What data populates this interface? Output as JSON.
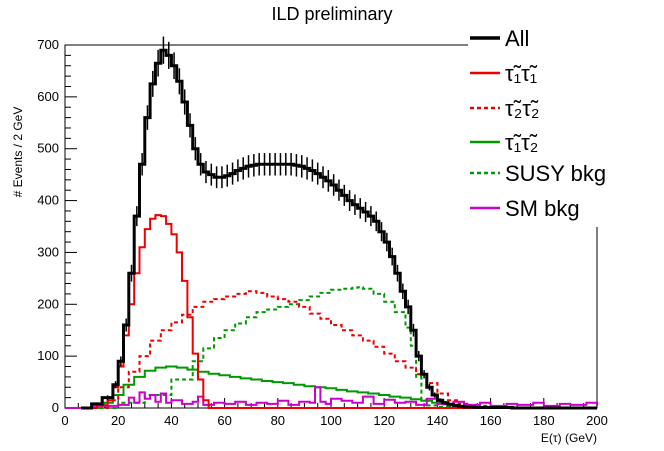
{
  "chart_data": {
    "type": "line",
    "title": "ILD preliminary",
    "xlabel": "E(τ) (GeV)",
    "ylabel": "# Events / 2 GeV",
    "xlim": [
      0,
      200
    ],
    "ylim": [
      0,
      700
    ],
    "xticks": [
      0,
      20,
      40,
      60,
      80,
      100,
      120,
      140,
      160,
      180,
      200
    ],
    "yticks": [
      0,
      100,
      200,
      300,
      400,
      500,
      600,
      700
    ],
    "legend_position": "top-right",
    "series": [
      {
        "name": "All",
        "label": "All",
        "color": "#000000",
        "dash": "solid",
        "width": 3,
        "errorbars": true,
        "x": [
          6,
          10,
          14,
          18,
          20,
          22,
          24,
          26,
          28,
          30,
          32,
          34,
          36,
          38,
          40,
          42,
          44,
          46,
          48,
          50,
          52,
          54,
          56,
          58,
          60,
          62,
          64,
          66,
          68,
          70,
          72,
          74,
          76,
          78,
          80,
          82,
          84,
          86,
          88,
          90,
          92,
          94,
          96,
          98,
          100,
          102,
          104,
          106,
          108,
          110,
          112,
          114,
          116,
          118,
          120,
          122,
          124,
          126,
          128,
          130,
          132,
          134,
          136,
          138,
          140,
          142,
          144,
          146,
          148,
          150,
          152,
          154,
          156,
          158,
          160,
          164,
          168,
          172,
          176,
          180,
          184,
          188,
          192,
          196,
          200
        ],
        "values": [
          0,
          8,
          20,
          45,
          90,
          160,
          260,
          370,
          470,
          560,
          625,
          665,
          690,
          680,
          660,
          630,
          590,
          545,
          500,
          470,
          455,
          450,
          445,
          445,
          448,
          452,
          458,
          462,
          466,
          468,
          470,
          470,
          470,
          470,
          470,
          470,
          470,
          468,
          466,
          462,
          458,
          452,
          445,
          438,
          430,
          420,
          410,
          400,
          392,
          385,
          378,
          370,
          360,
          340,
          320,
          292,
          260,
          225,
          195,
          150,
          100,
          65,
          40,
          25,
          15,
          10,
          7,
          5,
          3,
          2,
          2,
          1,
          1,
          1,
          1,
          1,
          0,
          0,
          0,
          0,
          0,
          0,
          0,
          0,
          0
        ]
      },
      {
        "name": "stau1-stau1",
        "label": "τ̃₁τ̃₁",
        "color": "#ee0000",
        "dash": "solid",
        "width": 2,
        "x": [
          8,
          12,
          16,
          18,
          20,
          22,
          24,
          26,
          28,
          30,
          32,
          34,
          36,
          38,
          40,
          42,
          44,
          46,
          48,
          50,
          52,
          54,
          60,
          100,
          140,
          200
        ],
        "values": [
          0,
          5,
          15,
          40,
          80,
          140,
          200,
          260,
          310,
          345,
          365,
          372,
          370,
          355,
          335,
          300,
          245,
          175,
          105,
          55,
          15,
          0,
          0,
          0,
          0,
          0
        ]
      },
      {
        "name": "stau2-stau2",
        "label": "τ̃₂τ̃₂",
        "color": "#ee0000",
        "dash": "dashed",
        "width": 2,
        "x": [
          10,
          16,
          20,
          24,
          28,
          32,
          36,
          40,
          44,
          48,
          52,
          56,
          60,
          64,
          68,
          72,
          76,
          80,
          84,
          88,
          92,
          96,
          100,
          104,
          108,
          112,
          116,
          120,
          124,
          128,
          132,
          136,
          140,
          144,
          148,
          152,
          160,
          170,
          180,
          200
        ],
        "values": [
          0,
          15,
          40,
          70,
          100,
          130,
          150,
          165,
          180,
          195,
          205,
          210,
          215,
          220,
          225,
          222,
          215,
          210,
          205,
          195,
          182,
          172,
          160,
          150,
          140,
          130,
          118,
          105,
          90,
          78,
          65,
          48,
          28,
          15,
          8,
          4,
          2,
          1,
          0,
          0
        ]
      },
      {
        "name": "stau1-stau2",
        "label": "τ̃₁τ̃₂",
        "color": "#009900",
        "dash": "solid",
        "width": 2,
        "x": [
          10,
          14,
          18,
          22,
          26,
          30,
          34,
          38,
          42,
          46,
          50,
          54,
          58,
          62,
          66,
          70,
          74,
          78,
          82,
          86,
          90,
          94,
          98,
          102,
          106,
          110,
          114,
          118,
          122,
          126,
          130,
          134,
          138,
          142,
          146,
          150,
          160,
          170,
          180,
          200
        ],
        "values": [
          0,
          10,
          25,
          45,
          60,
          72,
          78,
          80,
          78,
          74,
          70,
          66,
          63,
          60,
          57,
          55,
          52,
          50,
          48,
          45,
          42,
          40,
          38,
          35,
          32,
          30,
          28,
          25,
          22,
          20,
          17,
          14,
          10,
          7,
          4,
          2,
          1,
          0,
          0,
          0
        ]
      },
      {
        "name": "susy-bkg",
        "label": "SUSY bkg",
        "color": "#009900",
        "dash": "dashed",
        "width": 2,
        "x": [
          10,
          20,
          30,
          40,
          48,
          52,
          56,
          60,
          64,
          68,
          72,
          76,
          80,
          84,
          88,
          92,
          96,
          100,
          104,
          108,
          110,
          112,
          116,
          120,
          124,
          128,
          130,
          132,
          134,
          136,
          140,
          150,
          160,
          180,
          200
        ],
        "values": [
          0,
          10,
          25,
          55,
          90,
          115,
          135,
          150,
          163,
          175,
          185,
          190,
          195,
          200,
          208,
          215,
          222,
          228,
          230,
          232,
          233,
          230,
          220,
          205,
          185,
          155,
          120,
          60,
          15,
          5,
          2,
          0,
          0,
          0,
          0
        ]
      },
      {
        "name": "sm-bkg",
        "label": "SM bkg",
        "color": "#cc00cc",
        "dash": "solid",
        "width": 2,
        "x": [
          0,
          10,
          20,
          24,
          26,
          28,
          30,
          32,
          34,
          36,
          38,
          40,
          44,
          48,
          50,
          52,
          56,
          60,
          64,
          68,
          72,
          76,
          80,
          84,
          88,
          92,
          94,
          96,
          98,
          100,
          104,
          108,
          112,
          116,
          120,
          124,
          128,
          132,
          136,
          140,
          146,
          150,
          156,
          160,
          166,
          170,
          176,
          180,
          186,
          190,
          196,
          200
        ],
        "values": [
          0,
          4,
          6,
          20,
          10,
          30,
          18,
          25,
          12,
          28,
          10,
          15,
          8,
          12,
          22,
          6,
          10,
          8,
          12,
          6,
          10,
          8,
          14,
          6,
          12,
          10,
          40,
          12,
          8,
          18,
          14,
          10,
          22,
          8,
          16,
          10,
          12,
          6,
          18,
          8,
          12,
          6,
          10,
          4,
          8,
          6,
          10,
          4,
          8,
          6,
          10,
          4
        ]
      }
    ]
  }
}
